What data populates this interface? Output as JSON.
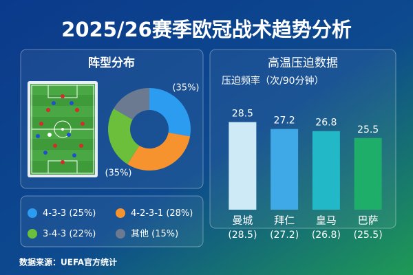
{
  "title": "2025/26赛季欧冠战术趋势分析",
  "source": "数据来源：UEFA官方统计",
  "chart_data": [
    {
      "type": "pie",
      "title": "阵型分布",
      "categories": [
        "4-3-3",
        "4-2-3-1",
        "3-4-3",
        "其他"
      ],
      "values": [
        25,
        28,
        22,
        15
      ],
      "value_labels": [
        "(25%)",
        "(28%)",
        "(22%)",
        "(15%)"
      ],
      "colors": [
        "#2b9cf0",
        "#f7932e",
        "#6bbf3a",
        "#6b7a90"
      ],
      "annotations": [
        "(35%)",
        "(35%)"
      ]
    },
    {
      "type": "bar",
      "title": "高温压迫数据",
      "subtitle": "压迫频率（次/90分钟）",
      "categories": [
        "曼城",
        "拜仁",
        "皇马",
        "巴萨"
      ],
      "values": [
        28.5,
        27.2,
        26.8,
        25.5
      ],
      "value_labels": [
        "(28.5)",
        "(27.2)",
        "(26.8)",
        "(25.5)"
      ],
      "colors": [
        "#cdeaf6",
        "#3fa9e8",
        "#22b8c8",
        "#1fae6a"
      ],
      "ylim": [
        12,
        30
      ]
    }
  ]
}
